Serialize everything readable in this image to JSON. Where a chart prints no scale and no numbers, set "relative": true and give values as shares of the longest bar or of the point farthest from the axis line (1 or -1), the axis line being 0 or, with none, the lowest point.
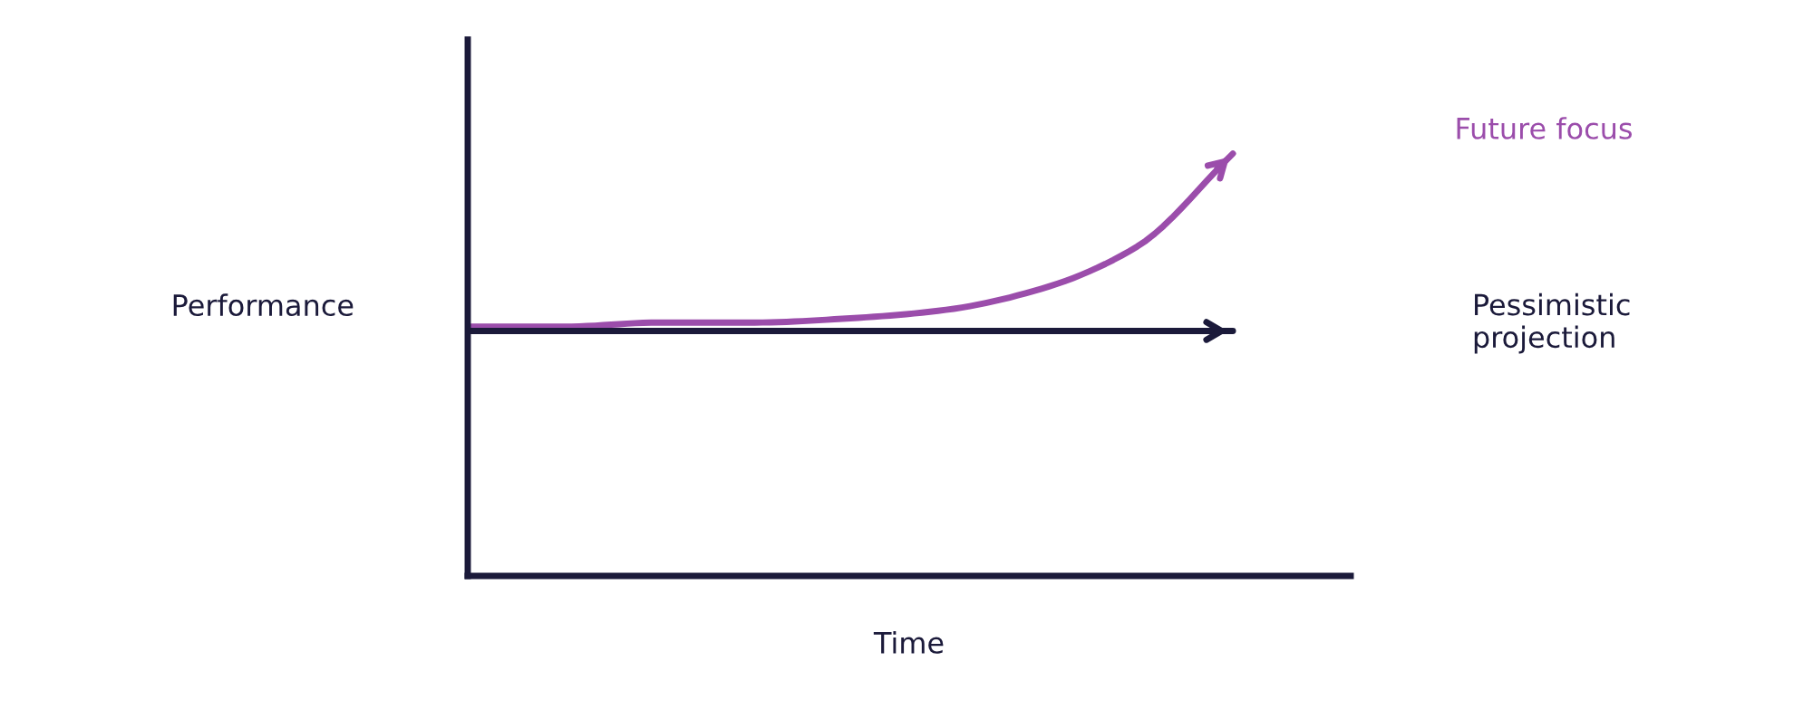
{
  "chart_data": {
    "type": "line",
    "relative": true,
    "xlabel": "Time",
    "ylabel": "Performance",
    "categories": [
      null,
      null,
      null,
      null,
      null,
      null,
      null,
      null,
      null
    ],
    "series": [
      {
        "name": "Future focus",
        "color": "#9b4dab",
        "values": [
          0.59,
          0.59,
          0.6,
          0.6,
          0.61,
          0.63,
          0.68,
          0.78,
          1.0
        ]
      },
      {
        "name": "Pessimistic\nprojection",
        "color": "#1b1a3a",
        "values": [
          0.58,
          0.58,
          0.58,
          0.58,
          0.58,
          0.58,
          0.58,
          0.58,
          0.58
        ]
      }
    ],
    "legend": false,
    "marker": "none",
    "line_style": "solid"
  }
}
